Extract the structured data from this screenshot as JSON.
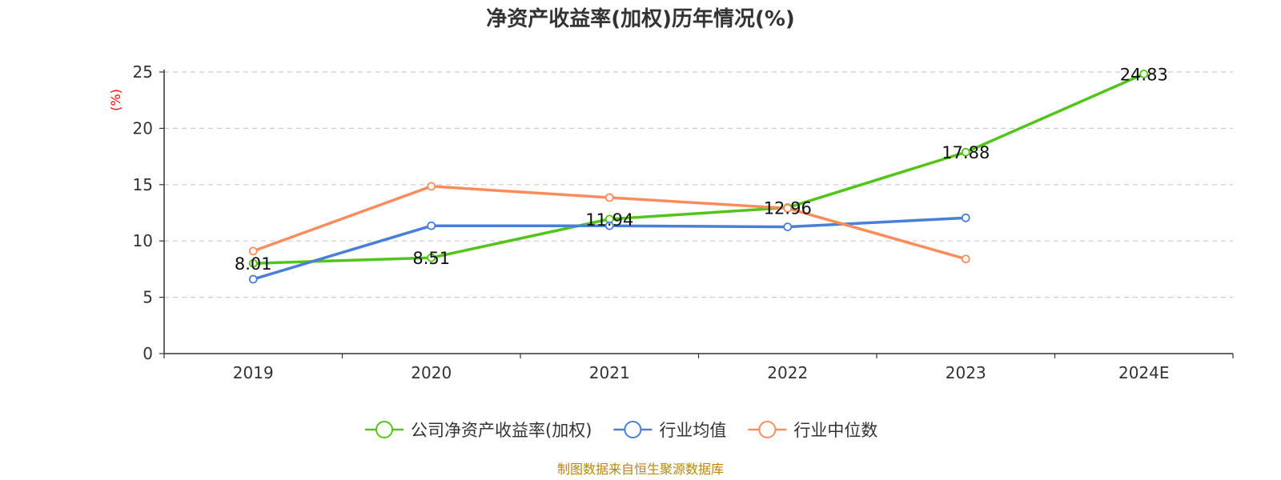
{
  "chart_data": {
    "type": "line",
    "title": "净资产收益率(加权)历年情况(%)",
    "ylabel": "(%)",
    "ylim": [
      0,
      25
    ],
    "yticks": [
      0,
      5,
      10,
      15,
      20,
      25
    ],
    "categories": [
      "2019",
      "2020",
      "2021",
      "2022",
      "2023",
      "2024E"
    ],
    "grid": true,
    "legend_position": "bottom",
    "series": [
      {
        "name": "公司净资产收益率(加权)",
        "color": "#52c41a",
        "values": [
          8.01,
          8.51,
          11.94,
          12.96,
          17.88,
          24.83
        ],
        "labels": [
          "8.01",
          "8.51",
          "11.94",
          "12.96",
          "17.88",
          "24.83"
        ]
      },
      {
        "name": "行业均值",
        "color": "#4a7fd9",
        "values": [
          6.6,
          11.35,
          11.35,
          11.25,
          12.05,
          null
        ]
      },
      {
        "name": "行业中位数",
        "color": "#fb8c5b",
        "values": [
          9.1,
          14.85,
          13.85,
          12.9,
          8.4,
          null
        ]
      }
    ]
  },
  "source": "制图数据来自恒生聚源数据库"
}
